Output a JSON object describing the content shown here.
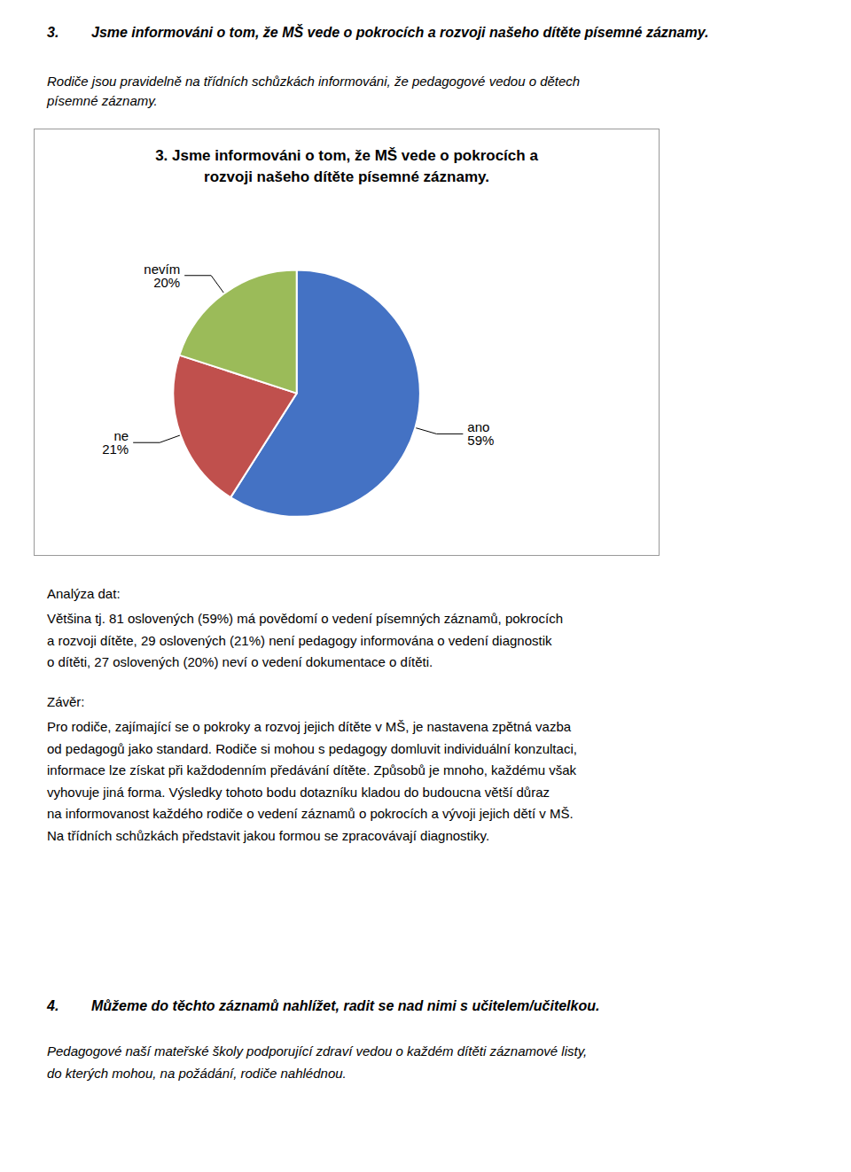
{
  "page_texts": {
    "heading": [
      "3.",
      "Jsme informováni o tom, že MŠ vede o pokrocích a rozvoji našeho dítěte písemné záznamy."
    ],
    "intro": [
      "Rodiče jsou pravidelně na třídních schůzkách informováni, že pedagogové vedou o dětech",
      "písemné záznamy."
    ],
    "analysis_title": "Analýza dat:",
    "analysis": [
      "Většina tj. 81 oslovených (59%) má povědomí o vedení písemných záznamů, pokrocích",
      "a rozvoji dítěte, 29 oslovených (21%) není pedagogy informována o vedení diagnostik",
      "o dítěti, 27 oslovených (20%) neví o vedení dokumentace o dítěti."
    ],
    "conclusion_title": "Závěr:",
    "conclusion": [
      "Pro rodiče, zajímající se o pokroky a rozvoj jejich dítěte v MŠ, je nastavena zpětná vazba",
      "od pedagogů jako standard. Rodiče si mohou s pedagogy domluvit individuální konzultaci,",
      "informace lze získat při každodenním předávání dítěte. Způsobů je mnoho, každému však",
      "vyhovuje jiná forma. Výsledky tohoto bodu dotazníku kladou do budoucna větší důraz",
      "na informovanost každého rodiče o vedení záznamů o pokrocích a vývoji jejich dětí v MŠ.",
      "Na třídních schůzkách představit jakou formou se zpracovávají diagnostiky."
    ],
    "section4_heading": [
      "4.",
      "Můžeme do těchto záznamů nahlížet, radit se nad nimi s učitelem/učitelkou."
    ],
    "section4": [
      "Pedagogové naší mateřské školy podporující zdraví vedou o každém dítěti záznamové listy,",
      "do kterých mohou, na požádání, rodiče nahlédnou."
    ]
  },
  "chart_data": {
    "type": "pie",
    "title": "3. Jsme informováni o tom, že MŠ vede o pokrocích a\nrozvoji našeho dítěte písemné záznamy.",
    "categories": [
      "ano",
      "ne",
      "nevím"
    ],
    "values": [
      59,
      21,
      20
    ],
    "value_labels": [
      "59%",
      "21%",
      "20%"
    ],
    "colors": [
      "#4472C4",
      "#C0504D",
      "#9BBB59"
    ],
    "data_labels": true,
    "legend": false
  }
}
